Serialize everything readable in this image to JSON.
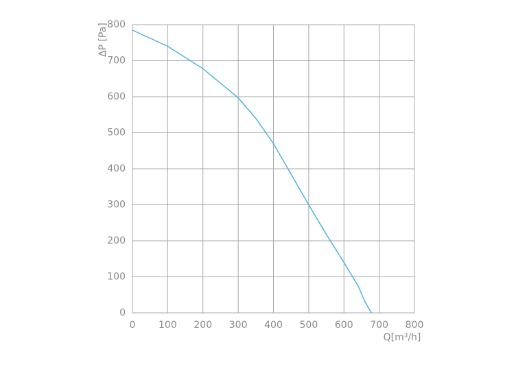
{
  "chart_data": {
    "type": "line",
    "x_label": "Q[m³/h]",
    "y_label": "ΔP [Pa]",
    "x": [
      0,
      100,
      200,
      300,
      350,
      400,
      450,
      500,
      550,
      600,
      640,
      660,
      678
    ],
    "series": [
      {
        "name": "ΔP",
        "color": "#4fb3d9",
        "values": [
          785,
          740,
          678,
          597,
          540,
          470,
          385,
          300,
          218,
          140,
          75,
          30,
          0
        ]
      }
    ],
    "xlim": [
      0,
      800
    ],
    "xticks": [
      0,
      100,
      200,
      300,
      400,
      500,
      600,
      700,
      800
    ],
    "ylim": [
      0,
      800
    ],
    "yticks": [
      0,
      100,
      200,
      300,
      400,
      500,
      600,
      700,
      800
    ],
    "grid": true
  }
}
